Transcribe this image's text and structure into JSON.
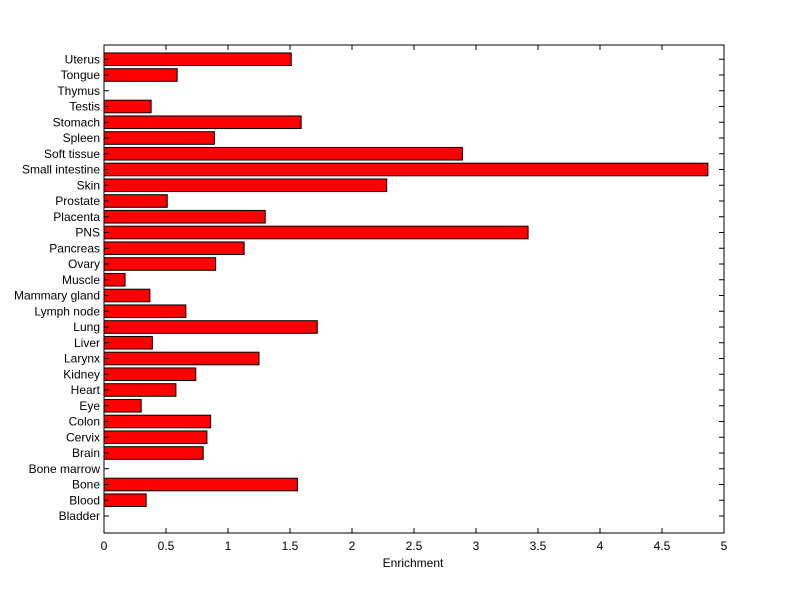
{
  "chart_data": {
    "type": "bar",
    "orientation": "horizontal",
    "title": "",
    "xlabel": "Enrichment",
    "ylabel": "",
    "xlim": [
      0,
      5
    ],
    "xticks": [
      "0",
      "0.5",
      "1",
      "1.5",
      "2",
      "2.5",
      "3",
      "3.5",
      "4",
      "4.5",
      "5"
    ],
    "grid": false,
    "legend": "none",
    "bar_color": "#ff0000",
    "categories": [
      "Bladder",
      "Blood",
      "Bone",
      "Bone marrow",
      "Brain",
      "Cervix",
      "Colon",
      "Eye",
      "Heart",
      "Kidney",
      "Larynx",
      "Liver",
      "Lung",
      "Lymph node",
      "Mammary gland",
      "Muscle",
      "Ovary",
      "Pancreas",
      "PNS",
      "Placenta",
      "Prostate",
      "Skin",
      "Small intestine",
      "Soft tissue",
      "Spleen",
      "Stomach",
      "Testis",
      "Thymus",
      "Tongue",
      "Uterus"
    ],
    "values": [
      0,
      0.34,
      1.56,
      0,
      0.8,
      0.83,
      0.86,
      0.3,
      0.58,
      0.74,
      1.25,
      0.39,
      1.72,
      0.66,
      0.37,
      0.17,
      0.9,
      1.13,
      3.42,
      1.3,
      0.51,
      2.28,
      4.87,
      2.89,
      0.89,
      1.59,
      0.38,
      0,
      0.59,
      1.51
    ]
  }
}
